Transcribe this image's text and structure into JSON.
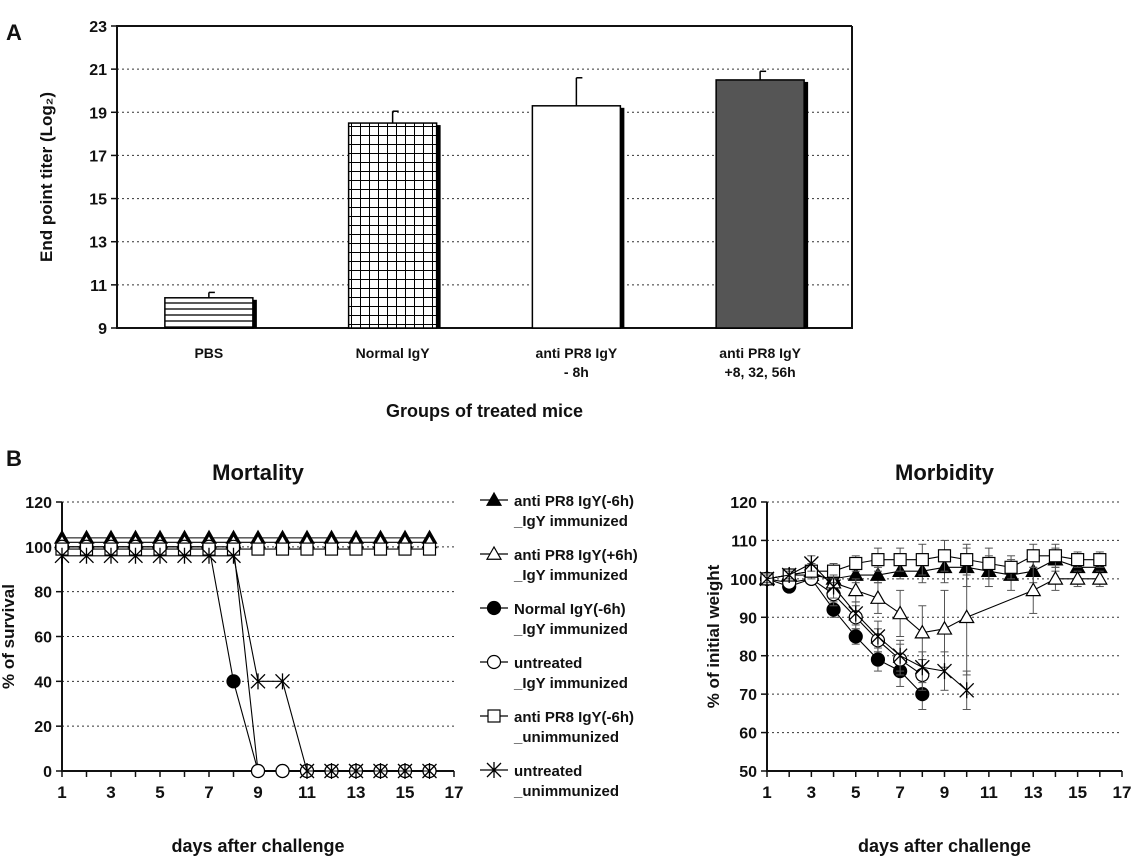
{
  "panels": {
    "a": "A",
    "b": "B"
  },
  "chart_data": [
    {
      "type": "bar",
      "title": "",
      "xlabel": "Groups of treated mice",
      "ylabel": "End point titer (Log₂)",
      "ylim": [
        9,
        23
      ],
      "yticks": [
        9,
        11,
        13,
        15,
        17,
        19,
        21,
        23
      ],
      "grid": "horizontal",
      "categories": [
        [
          "PBS"
        ],
        [
          "Normal IgY"
        ],
        [
          "anti PR8 IgY",
          "- 8h"
        ],
        [
          "anti PR8 IgY",
          "+8, 32, 56h"
        ]
      ],
      "values": [
        10.4,
        18.5,
        19.3,
        20.5
      ],
      "errors": [
        0.25,
        0.55,
        1.3,
        0.4
      ],
      "fills": [
        "horizontal-stripes",
        "grid",
        "white",
        "#555555"
      ]
    },
    {
      "type": "line",
      "title": "Mortality",
      "xlabel": "days after challenge",
      "ylabel": "% of survival",
      "xlim": [
        1,
        17
      ],
      "ylim": [
        0,
        120
      ],
      "xticks": [
        1,
        3,
        5,
        7,
        9,
        11,
        13,
        15,
        17
      ],
      "yticks": [
        0,
        20,
        40,
        60,
        80,
        100,
        120
      ],
      "grid": "horizontal",
      "series": [
        {
          "name": [
            "anti PR8 IgY(-6h)",
            "_IgY immunized"
          ],
          "marker": "filled-triangle",
          "x": [
            1,
            2,
            3,
            4,
            5,
            6,
            7,
            8,
            9,
            10,
            11,
            12,
            13,
            14,
            15,
            16
          ],
          "y": [
            104,
            104,
            104,
            104,
            104,
            104,
            104,
            104,
            104,
            104,
            104,
            104,
            104,
            104,
            104,
            104
          ]
        },
        {
          "name": [
            "anti PR8 IgY(+6h)",
            "_IgY immunized"
          ],
          "marker": "open-triangle",
          "x": [
            1,
            2,
            3,
            4,
            5,
            6,
            7,
            8,
            9,
            10,
            11,
            12,
            13,
            14,
            15,
            16
          ],
          "y": [
            102,
            102,
            102,
            102,
            102,
            102,
            102,
            102,
            102,
            102,
            102,
            102,
            102,
            102,
            102,
            102
          ]
        },
        {
          "name": [
            "Normal IgY(-6h)",
            "_IgY immunized"
          ],
          "marker": "filled-circle",
          "x": [
            1,
            2,
            3,
            4,
            5,
            6,
            7,
            8,
            9,
            10,
            11,
            12,
            13,
            14,
            15,
            16
          ],
          "y": [
            100,
            100,
            100,
            100,
            100,
            100,
            100,
            40,
            0,
            0,
            0,
            0,
            0,
            0,
            0,
            0
          ]
        },
        {
          "name": [
            "untreated",
            "_IgY immunized"
          ],
          "marker": "open-circle",
          "x": [
            1,
            2,
            3,
            4,
            5,
            6,
            7,
            8,
            9,
            10,
            11,
            12,
            13,
            14,
            15,
            16
          ],
          "y": [
            100,
            100,
            100,
            100,
            100,
            100,
            100,
            100,
            0,
            0,
            0,
            0,
            0,
            0,
            0,
            0
          ]
        },
        {
          "name": [
            "anti PR8 IgY(-6h)",
            "_unimmunized"
          ],
          "marker": "open-square",
          "x": [
            1,
            2,
            3,
            4,
            5,
            6,
            7,
            8,
            9,
            10,
            11,
            12,
            13,
            14,
            15,
            16
          ],
          "y": [
            99,
            99,
            99,
            99,
            99,
            99,
            99,
            99,
            99,
            99,
            99,
            99,
            99,
            99,
            99,
            99
          ]
        },
        {
          "name": [
            "untreated",
            "_unimmunized"
          ],
          "marker": "star",
          "x": [
            1,
            2,
            3,
            4,
            5,
            6,
            7,
            8,
            9,
            10,
            11,
            12,
            13,
            14,
            15,
            16
          ],
          "y": [
            96,
            96,
            96,
            96,
            96,
            96,
            96,
            96,
            40,
            40,
            0,
            0,
            0,
            0,
            0,
            0
          ]
        }
      ]
    },
    {
      "type": "line",
      "title": "Morbidity",
      "xlabel": "days after challenge",
      "ylabel": "% of initial weight",
      "xlim": [
        1,
        17
      ],
      "ylim": [
        50,
        120
      ],
      "xticks": [
        1,
        3,
        5,
        7,
        9,
        11,
        13,
        15,
        17
      ],
      "yticks": [
        50,
        60,
        70,
        80,
        90,
        100,
        110,
        120
      ],
      "grid": "horizontal",
      "series": [
        {
          "name": "anti PR8 IgY(-6h) _IgY immunized",
          "marker": "filled-triangle",
          "x": [
            1,
            2,
            3,
            4,
            5,
            6,
            7,
            8,
            9,
            10,
            11,
            12,
            13,
            14,
            15,
            16
          ],
          "y": [
            100,
            101,
            101,
            100,
            101,
            101,
            102,
            102,
            103,
            103,
            102,
            101,
            102,
            105,
            103,
            103
          ],
          "err": [
            1,
            1,
            1,
            2,
            2,
            2,
            2,
            3,
            4,
            5,
            4,
            4,
            3,
            3,
            3,
            3
          ]
        },
        {
          "name": "anti PR8 IgY(+6h) _IgY immunized",
          "marker": "open-triangle",
          "x": [
            1,
            2,
            3,
            4,
            5,
            6,
            7,
            8,
            9,
            10,
            13,
            14,
            15,
            16
          ],
          "y": [
            100,
            101,
            102,
            99,
            97,
            95,
            91,
            86,
            87,
            90,
            97,
            100,
            100,
            100
          ],
          "err": [
            1,
            1,
            2,
            2,
            3,
            4,
            6,
            7,
            10,
            15,
            6,
            3,
            2,
            2
          ]
        },
        {
          "name": "Normal IgY(-6h) _IgY immunized",
          "marker": "filled-circle",
          "x": [
            1,
            2,
            3,
            4,
            5,
            6,
            7,
            8
          ],
          "y": [
            100,
            98,
            100,
            92,
            85,
            79,
            76,
            70
          ],
          "err": [
            1,
            1,
            1,
            2,
            2,
            3,
            4,
            4
          ]
        },
        {
          "name": "untreated _IgY immunized",
          "marker": "open-circle",
          "x": [
            1,
            2,
            3,
            4,
            5,
            6,
            7,
            8
          ],
          "y": [
            100,
            99,
            100,
            96,
            90,
            84,
            79,
            75
          ],
          "err": [
            1,
            1,
            1,
            3,
            3,
            3,
            4,
            4
          ]
        },
        {
          "name": "anti PR8 IgY(-6h) _unimmunized",
          "marker": "open-square",
          "x": [
            1,
            2,
            3,
            4,
            5,
            6,
            7,
            8,
            9,
            10,
            11,
            12,
            13,
            14,
            15,
            16
          ],
          "y": [
            100,
            101,
            102,
            102,
            104,
            105,
            105,
            105,
            106,
            105,
            104,
            103,
            106,
            106,
            105,
            105
          ],
          "err": [
            1,
            1,
            2,
            2,
            2,
            3,
            3,
            4,
            4,
            4,
            4,
            3,
            3,
            3,
            2,
            2
          ]
        },
        {
          "name": "untreated _unimmunized",
          "marker": "star",
          "x": [
            1,
            2,
            3,
            4,
            5,
            6,
            7,
            8,
            9,
            10
          ],
          "y": [
            100,
            101,
            104,
            98,
            91,
            85,
            80,
            77,
            76,
            71
          ],
          "err": [
            1,
            1,
            2,
            3,
            3,
            4,
            4,
            4,
            5,
            5
          ]
        }
      ]
    }
  ]
}
